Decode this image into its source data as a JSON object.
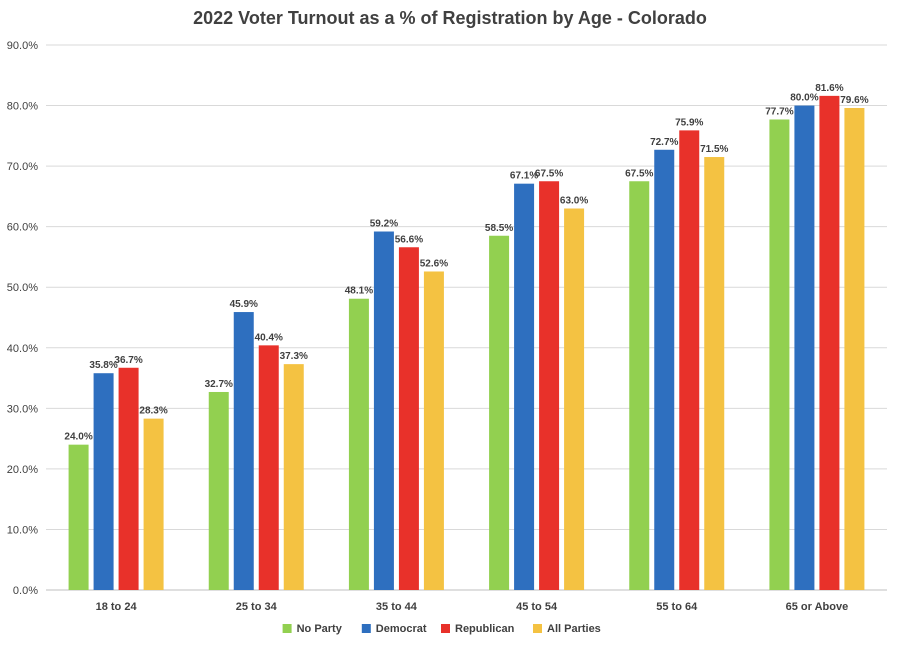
{
  "chart_data": {
    "type": "bar",
    "title": "2022 Voter Turnout as a % of Registration by Age - Colorado",
    "xlabel": "",
    "ylabel": "",
    "ylim": [
      0,
      90
    ],
    "ytick_step": 10,
    "ytick_labels": [
      "0.0%",
      "10.0%",
      "20.0%",
      "30.0%",
      "40.0%",
      "50.0%",
      "60.0%",
      "70.0%",
      "80.0%",
      "90.0%"
    ],
    "grid": true,
    "legend_position": "bottom",
    "categories": [
      "18 to 24",
      "25 to 34",
      "35 to 44",
      "45 to 54",
      "55 to 64",
      "65 or Above"
    ],
    "series": [
      {
        "name": "No Party",
        "color": "#92d050",
        "values": [
          24.0,
          32.7,
          48.1,
          58.5,
          67.5,
          77.7
        ],
        "labels": [
          "24.0%",
          "32.7%",
          "48.1%",
          "58.5%",
          "67.5%",
          "77.7%"
        ]
      },
      {
        "name": "Democrat",
        "color": "#2e6fbf",
        "values": [
          35.8,
          45.9,
          59.2,
          67.1,
          72.7,
          80.0
        ],
        "labels": [
          "35.8%",
          "45.9%",
          "59.2%",
          "67.1%",
          "72.7%",
          "80.0%"
        ]
      },
      {
        "name": "Republican",
        "color": "#e8312a",
        "values": [
          36.7,
          40.4,
          56.6,
          67.5,
          75.9,
          81.6
        ],
        "labels": [
          "36.7%",
          "40.4%",
          "56.6%",
          "67.5%",
          "75.9%",
          "81.6%"
        ]
      },
      {
        "name": "All Parties",
        "color": "#f4c242",
        "values": [
          28.3,
          37.3,
          52.6,
          63.0,
          71.5,
          79.6
        ],
        "labels": [
          "28.3%",
          "37.3%",
          "52.6%",
          "63.0%",
          "71.5%",
          "79.6%"
        ]
      }
    ]
  }
}
